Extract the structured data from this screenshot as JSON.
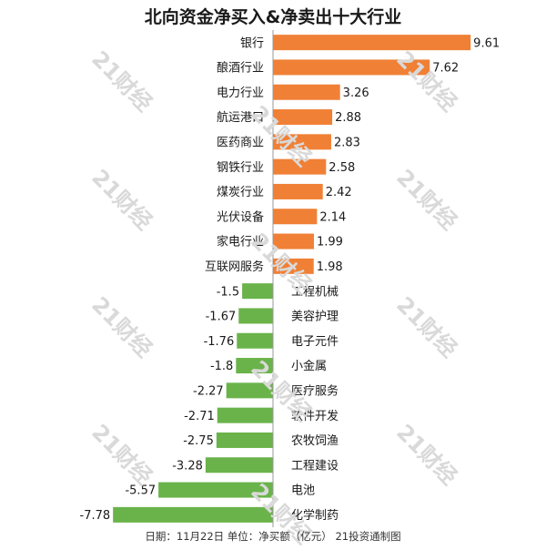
{
  "chart_data": {
    "type": "bar",
    "orientation": "horizontal",
    "title": "北向资金净买入&净卖出十大行业",
    "categories": [
      "银行",
      "酿酒行业",
      "电力行业",
      "航运港口",
      "医药商业",
      "钢铁行业",
      "煤炭行业",
      "光伏设备",
      "家电行业",
      "互联网服务",
      "工程机械",
      "美容护理",
      "电子元件",
      "小金属",
      "医疗服务",
      "软件开发",
      "农牧饲渔",
      "工程建设",
      "电池",
      "化学制药"
    ],
    "values": [
      9.61,
      7.62,
      3.26,
      2.88,
      2.83,
      2.58,
      2.42,
      2.14,
      1.99,
      1.98,
      -1.5,
      -1.67,
      -1.76,
      -1.8,
      -2.27,
      -2.71,
      -2.75,
      -3.28,
      -5.57,
      -7.78
    ],
    "value_labels": [
      "9.61",
      "7.62",
      "3.26",
      "2.88",
      "2.83",
      "2.58",
      "2.42",
      "2.14",
      "1.99",
      "1.98",
      "-1.5",
      "-1.67",
      "-1.76",
      "-1.8",
      "-2.27",
      "-2.71",
      "-2.75",
      "-3.28",
      "-5.57",
      "-7.78"
    ],
    "colors": {
      "positive": "#f08035",
      "negative": "#6ab34a",
      "axis": "#999999"
    },
    "grid": false,
    "legend": "none"
  },
  "footer": "日期：11月22日  单位：净买额（亿元）  21投资通制图",
  "watermark_text": "21财经"
}
